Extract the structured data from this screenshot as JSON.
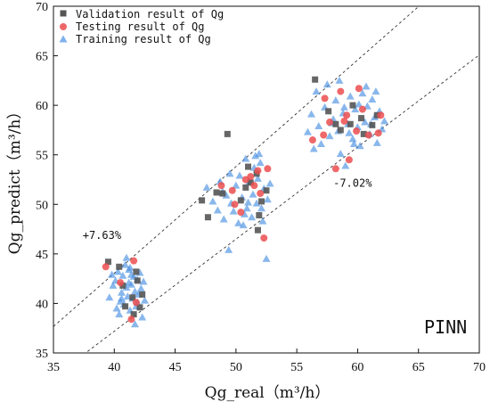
{
  "chart_data": {
    "type": "scatter",
    "xlabel": "Qg_real（m³/h）",
    "ylabel": "Qg_predict（m³/h）",
    "xlim": [
      35,
      70
    ],
    "ylim": [
      35,
      70
    ],
    "xticks": [
      35,
      40,
      45,
      50,
      55,
      60,
      65,
      70
    ],
    "yticks": [
      35,
      40,
      45,
      50,
      55,
      60,
      65,
      70
    ],
    "grid": false,
    "legend_position": "top-left",
    "watermark": "PINN",
    "annotations": [
      {
        "text": "+7.63%",
        "x": 39.3,
        "y": 46.5
      },
      {
        "text": "-7.02%",
        "x": 58.0,
        "y": 51.8
      }
    ],
    "bound_lines": [
      {
        "name": "upper",
        "slope": 1.0763
      },
      {
        "name": "lower",
        "slope": 0.9298
      }
    ],
    "colors": {
      "validation": "#555555",
      "testing": "#ec4d4f",
      "training": "#4a90e2",
      "bound_line": "#333333"
    },
    "series": [
      {
        "name": "Validation result of Qg",
        "marker": "square",
        "points": [
          [
            39.5,
            44.2
          ],
          [
            40.4,
            43.7
          ],
          [
            41.8,
            43.2
          ],
          [
            41.5,
            40.6
          ],
          [
            40.9,
            39.7
          ],
          [
            41.6,
            38.9
          ],
          [
            42.1,
            39.6
          ],
          [
            42.3,
            40.9
          ],
          [
            40.7,
            41.8
          ],
          [
            41.9,
            42.3
          ],
          [
            47.2,
            50.4
          ],
          [
            48.4,
            51.2
          ],
          [
            48.9,
            51.1
          ],
          [
            49.3,
            57.1
          ],
          [
            50.4,
            50.4
          ],
          [
            50.8,
            51.7
          ],
          [
            51.0,
            53.8
          ],
          [
            51.7,
            53.1
          ],
          [
            51.8,
            47.4
          ],
          [
            51.9,
            48.9
          ],
          [
            52.1,
            50.3
          ],
          [
            52.5,
            51.4
          ],
          [
            51.2,
            52.2
          ],
          [
            47.7,
            48.7
          ],
          [
            56.5,
            62.6
          ],
          [
            57.6,
            59.4
          ],
          [
            58.2,
            58.1
          ],
          [
            58.6,
            57.5
          ],
          [
            59.4,
            58.1
          ],
          [
            59.6,
            60.0
          ],
          [
            60.3,
            58.7
          ],
          [
            61.2,
            58.0
          ],
          [
            60.5,
            57.1
          ],
          [
            61.6,
            59.0
          ]
        ]
      },
      {
        "name": "Testing result of Qg",
        "marker": "circle",
        "points": [
          [
            39.3,
            43.7
          ],
          [
            41.6,
            44.3
          ],
          [
            41.4,
            38.4
          ],
          [
            41.8,
            40.1
          ],
          [
            40.5,
            42.1
          ],
          [
            48.8,
            51.9
          ],
          [
            49.7,
            51.4
          ],
          [
            50.4,
            49.2
          ],
          [
            50.8,
            52.5
          ],
          [
            51.2,
            52.8
          ],
          [
            51.5,
            51.9
          ],
          [
            51.8,
            53.4
          ],
          [
            52.0,
            51.1
          ],
          [
            52.3,
            46.6
          ],
          [
            52.6,
            53.6
          ],
          [
            49.9,
            50.0
          ],
          [
            56.3,
            56.5
          ],
          [
            57.3,
            60.7
          ],
          [
            57.7,
            58.3
          ],
          [
            57.2,
            57.0
          ],
          [
            58.2,
            53.6
          ],
          [
            58.6,
            61.4
          ],
          [
            59.3,
            54.5
          ],
          [
            59.9,
            57.4
          ],
          [
            60.1,
            61.7
          ],
          [
            60.4,
            59.6
          ],
          [
            60.9,
            57.0
          ],
          [
            61.7,
            57.2
          ],
          [
            61.9,
            59.0
          ],
          [
            59.1,
            59.0
          ],
          [
            58.9,
            58.4
          ]
        ]
      },
      {
        "name": "Training result of Qg",
        "marker": "triangle",
        "points": [
          [
            39.6,
            40.6
          ],
          [
            39.9,
            41.8
          ],
          [
            40.1,
            42.3
          ],
          [
            40.3,
            43.2
          ],
          [
            40.5,
            40.2
          ],
          [
            40.6,
            41.1
          ],
          [
            40.7,
            42.8
          ],
          [
            40.8,
            39.9
          ],
          [
            40.9,
            43.9
          ],
          [
            41.0,
            41.6
          ],
          [
            41.1,
            40.7
          ],
          [
            41.2,
            42.1
          ],
          [
            41.2,
            43.4
          ],
          [
            41.3,
            39.3
          ],
          [
            41.4,
            41.9
          ],
          [
            41.5,
            40.5
          ],
          [
            41.6,
            42.7
          ],
          [
            41.7,
            41.2
          ],
          [
            41.8,
            39.7
          ],
          [
            41.9,
            42.4
          ],
          [
            42.0,
            40.9
          ],
          [
            42.1,
            43.1
          ],
          [
            42.2,
            41.5
          ],
          [
            42.3,
            38.6
          ],
          [
            42.4,
            42.2
          ],
          [
            40.4,
            38.9
          ],
          [
            41.0,
            44.6
          ],
          [
            41.7,
            37.9
          ],
          [
            42.5,
            40.3
          ],
          [
            39.8,
            42.9
          ],
          [
            40.2,
            39.5
          ],
          [
            41.3,
            43.6
          ],
          [
            41.9,
            40.1
          ],
          [
            40.6,
            40.5
          ],
          [
            41.4,
            42.9
          ],
          [
            47.6,
            51.7
          ],
          [
            48.1,
            50.3
          ],
          [
            48.5,
            49.4
          ],
          [
            48.7,
            52.3
          ],
          [
            49.0,
            48.5
          ],
          [
            49.2,
            50.9
          ],
          [
            49.4,
            45.4
          ],
          [
            49.5,
            53.1
          ],
          [
            49.8,
            49.3
          ],
          [
            50.0,
            51.9
          ],
          [
            50.2,
            48.1
          ],
          [
            50.3,
            52.9
          ],
          [
            50.5,
            50.7
          ],
          [
            50.7,
            49.0
          ],
          [
            50.8,
            54.6
          ],
          [
            51.0,
            50.2
          ],
          [
            51.1,
            52.3
          ],
          [
            51.3,
            48.7
          ],
          [
            51.4,
            51.0
          ],
          [
            51.5,
            53.7
          ],
          [
            51.7,
            50.1
          ],
          [
            51.8,
            52.6
          ],
          [
            52.0,
            54.2
          ],
          [
            52.1,
            49.6
          ],
          [
            52.3,
            51.6
          ],
          [
            52.5,
            44.5
          ],
          [
            52.6,
            50.5
          ],
          [
            52.8,
            52.1
          ],
          [
            50.6,
            47.9
          ],
          [
            51.9,
            55.1
          ],
          [
            49.6,
            50.1
          ],
          [
            50.9,
            49.6
          ],
          [
            52.2,
            48.3
          ],
          [
            48.9,
            51.3
          ],
          [
            51.6,
            54.9
          ],
          [
            55.9,
            57.3
          ],
          [
            56.2,
            59.1
          ],
          [
            56.4,
            55.6
          ],
          [
            56.6,
            61.4
          ],
          [
            56.8,
            57.9
          ],
          [
            57.0,
            56.1
          ],
          [
            57.3,
            59.8
          ],
          [
            57.5,
            62.1
          ],
          [
            57.7,
            56.9
          ],
          [
            58.0,
            58.6
          ],
          [
            58.2,
            60.5
          ],
          [
            58.4,
            57.4
          ],
          [
            58.6,
            55.1
          ],
          [
            58.8,
            59.2
          ],
          [
            59.0,
            53.9
          ],
          [
            59.2,
            58.1
          ],
          [
            59.4,
            60.9
          ],
          [
            59.6,
            56.6
          ],
          [
            59.8,
            59.6
          ],
          [
            60.0,
            57.8
          ],
          [
            60.2,
            55.9
          ],
          [
            60.4,
            61.2
          ],
          [
            60.6,
            58.3
          ],
          [
            60.8,
            59.9
          ],
          [
            61.0,
            57.1
          ],
          [
            61.2,
            60.6
          ],
          [
            61.4,
            58.8
          ],
          [
            61.6,
            56.2
          ],
          [
            61.8,
            59.4
          ],
          [
            62.0,
            57.6
          ],
          [
            62.2,
            58.4
          ],
          [
            60.7,
            61.9
          ],
          [
            59.7,
            56.1
          ],
          [
            58.5,
            62.5
          ],
          [
            61.1,
            58.1
          ],
          [
            57.9,
            58.2
          ],
          [
            60.1,
            60.1
          ],
          [
            59.3,
            57.2
          ],
          [
            61.5,
            61.4
          ],
          [
            58.9,
            59.8
          ]
        ]
      }
    ]
  }
}
